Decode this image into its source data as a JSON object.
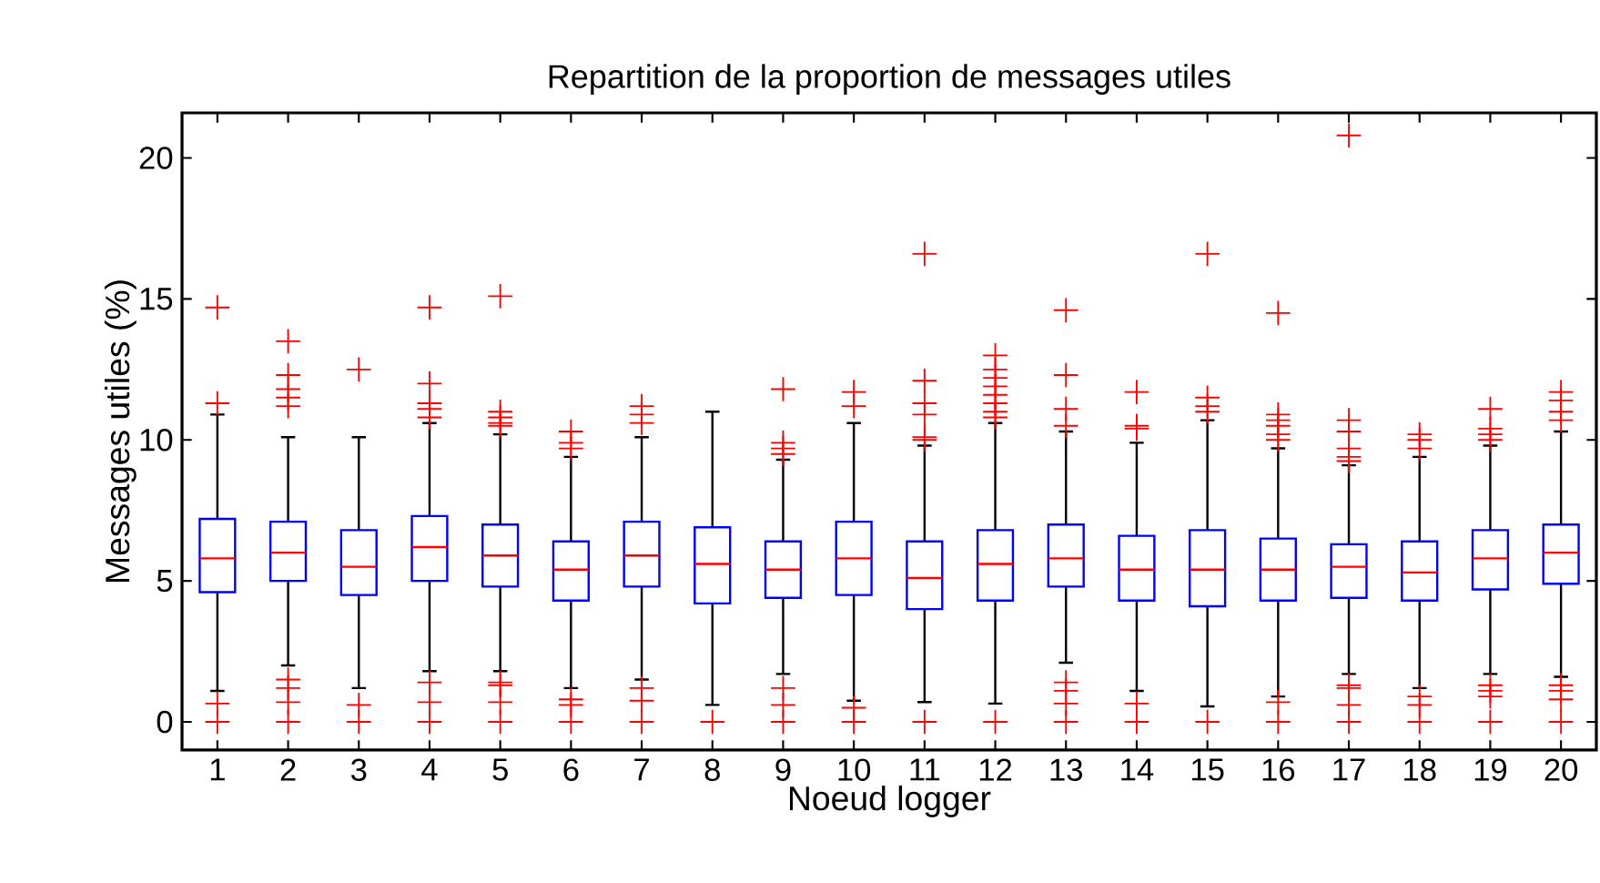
{
  "chart_data": {
    "type": "box",
    "title": "Repartition de la proportion de messages utiles",
    "xlabel": "Noeud logger",
    "ylabel": "Messages utiles (%)",
    "categories": [
      "1",
      "2",
      "3",
      "4",
      "5",
      "6",
      "7",
      "8",
      "9",
      "10",
      "11",
      "12",
      "13",
      "14",
      "15",
      "16",
      "17",
      "18",
      "19",
      "20"
    ],
    "ylim": [
      -1,
      21.6
    ],
    "yticks": [
      0,
      5,
      10,
      15,
      20
    ],
    "grid": false,
    "boxes": [
      {
        "low": 1.1,
        "q1": 4.6,
        "median": 5.8,
        "q3": 7.2,
        "high": 10.9,
        "outliers": [
          14.7,
          11.3,
          0.65,
          0
        ]
      },
      {
        "low": 2.0,
        "q1": 5.0,
        "median": 6.0,
        "q3": 7.1,
        "high": 10.1,
        "outliers": [
          13.5,
          12.3,
          11.8,
          11.5,
          11.2,
          1.5,
          1.2,
          0.7,
          0
        ]
      },
      {
        "low": 1.2,
        "q1": 4.5,
        "median": 5.5,
        "q3": 6.8,
        "high": 10.1,
        "outliers": [
          12.5,
          0.6,
          0
        ]
      },
      {
        "low": 1.8,
        "q1": 5.0,
        "median": 6.2,
        "q3": 7.3,
        "high": 10.6,
        "outliers": [
          14.7,
          12.0,
          11.3,
          11.1,
          10.8,
          1.4,
          0.7,
          0
        ]
      },
      {
        "low": 1.8,
        "q1": 4.8,
        "median": 5.9,
        "q3": 7.0,
        "high": 10.2,
        "outliers": [
          15.1,
          11.0,
          10.8,
          10.6,
          10.5,
          1.4,
          1.3,
          0.7,
          0
        ]
      },
      {
        "low": 1.2,
        "q1": 4.3,
        "median": 5.4,
        "q3": 6.4,
        "high": 9.4,
        "outliers": [
          10.3,
          9.9,
          9.7,
          0.8,
          0.6,
          0
        ]
      },
      {
        "low": 1.5,
        "q1": 4.8,
        "median": 5.9,
        "q3": 7.1,
        "high": 10.1,
        "outliers": [
          11.2,
          10.9,
          10.6,
          1.2,
          0.75,
          0
        ]
      },
      {
        "low": 0.6,
        "q1": 4.2,
        "median": 5.6,
        "q3": 6.9,
        "high": 11.0,
        "outliers": [
          0
        ]
      },
      {
        "low": 1.7,
        "q1": 4.4,
        "median": 5.4,
        "q3": 6.4,
        "high": 9.3,
        "outliers": [
          11.8,
          9.9,
          9.7,
          9.5,
          1.2,
          0.6,
          0
        ]
      },
      {
        "low": 0.75,
        "q1": 4.5,
        "median": 5.8,
        "q3": 7.1,
        "high": 10.6,
        "outliers": [
          11.7,
          11.2,
          0.5,
          0
        ]
      },
      {
        "low": 0.7,
        "q1": 4.0,
        "median": 5.1,
        "q3": 6.4,
        "high": 9.8,
        "outliers": [
          16.6,
          12.1,
          11.3,
          10.9,
          10.1,
          10.0,
          0
        ]
      },
      {
        "low": 0.65,
        "q1": 4.3,
        "median": 5.6,
        "q3": 6.8,
        "high": 10.6,
        "outliers": [
          13.0,
          12.5,
          12.2,
          11.9,
          11.6,
          11.3,
          11.0,
          10.8,
          0
        ]
      },
      {
        "low": 2.1,
        "q1": 4.8,
        "median": 5.8,
        "q3": 7.0,
        "high": 10.3,
        "outliers": [
          14.6,
          12.3,
          11.1,
          10.5,
          1.4,
          1.1,
          0.65,
          0
        ]
      },
      {
        "low": 1.1,
        "q1": 4.3,
        "median": 5.4,
        "q3": 6.6,
        "high": 9.9,
        "outliers": [
          11.7,
          10.5,
          10.4,
          0.65,
          0
        ]
      },
      {
        "low": 0.55,
        "q1": 4.1,
        "median": 5.4,
        "q3": 6.8,
        "high": 10.7,
        "outliers": [
          16.6,
          11.5,
          11.2,
          11.0,
          0
        ]
      },
      {
        "low": 0.9,
        "q1": 4.3,
        "median": 5.4,
        "q3": 6.5,
        "high": 9.7,
        "outliers": [
          14.5,
          10.9,
          10.7,
          10.5,
          10.2,
          10.0,
          0.7,
          0
        ]
      },
      {
        "low": 1.7,
        "q1": 4.4,
        "median": 5.5,
        "q3": 6.3,
        "high": 9.1,
        "outliers": [
          20.8,
          10.7,
          10.3,
          9.7,
          9.4,
          9.25,
          1.3,
          1.2,
          0.6,
          0
        ]
      },
      {
        "low": 1.2,
        "q1": 4.3,
        "median": 5.3,
        "q3": 6.4,
        "high": 9.4,
        "outliers": [
          10.2,
          10.0,
          9.7,
          0.9,
          0.6,
          0
        ]
      },
      {
        "low": 1.7,
        "q1": 4.7,
        "median": 5.8,
        "q3": 6.8,
        "high": 9.8,
        "outliers": [
          11.1,
          10.4,
          10.2,
          10.0,
          1.3,
          1.1,
          0.9,
          0
        ]
      },
      {
        "low": 1.6,
        "q1": 4.9,
        "median": 6.0,
        "q3": 7.0,
        "high": 10.3,
        "outliers": [
          11.7,
          11.4,
          11.0,
          10.7,
          1.3,
          1.1,
          0.8,
          0
        ]
      }
    ]
  }
}
